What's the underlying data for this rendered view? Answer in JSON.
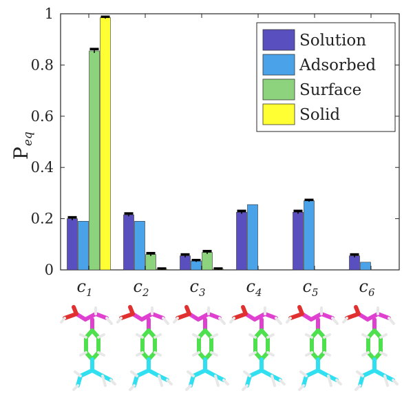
{
  "chart_data": {
    "type": "bar",
    "title": "",
    "xlabel": "",
    "ylabel": "P",
    "ylabel_subscript": "eq",
    "ylim": [
      0,
      1
    ],
    "yticks": [
      "0",
      "0.2",
      "0.4",
      "0.6",
      "0.8",
      "1"
    ],
    "yticks_values": [
      0,
      0.2,
      0.4,
      0.6,
      0.8,
      1
    ],
    "categories": [
      {
        "base": "c",
        "sub": "1"
      },
      {
        "base": "c",
        "sub": "2"
      },
      {
        "base": "c",
        "sub": "3"
      },
      {
        "base": "c",
        "sub": "4"
      },
      {
        "base": "c",
        "sub": "5"
      },
      {
        "base": "c",
        "sub": "6"
      }
    ],
    "legend_position": "top-right",
    "series": [
      {
        "name": "Solution",
        "color": "#5a4fbf",
        "values": [
          0.2,
          0.215,
          0.055,
          0.225,
          0.225,
          0.055
        ],
        "errors": [
          0.006,
          0.006,
          0.006,
          0.006,
          0.006,
          0.006
        ],
        "error_bars": [
          true,
          true,
          true,
          true,
          true,
          true
        ]
      },
      {
        "name": "Adsorbed",
        "color": "#4aa3e8",
        "values": [
          0.19,
          0.19,
          0.035,
          0.255,
          0.27,
          0.03
        ],
        "errors": [
          0.004,
          0.004,
          0.004,
          0.004,
          0.004,
          0.004
        ],
        "error_bars": [
          false,
          false,
          true,
          false,
          true,
          false
        ]
      },
      {
        "name": "Surface",
        "color": "#8dd27c",
        "values": [
          0.855,
          0.06,
          0.068,
          0.0,
          0.0,
          0.0
        ],
        "errors": [
          0.008,
          0.006,
          0.006,
          0.0,
          0.0,
          0.0
        ],
        "error_bars": [
          true,
          true,
          true,
          false,
          false,
          false
        ]
      },
      {
        "name": "Solid",
        "color": "#ffff33",
        "values": [
          0.985,
          0.003,
          0.003,
          0.0,
          0.0,
          0.0
        ],
        "errors": [
          0.004,
          0.003,
          0.003,
          0.0,
          0.0,
          0.0
        ],
        "error_bars": [
          true,
          true,
          true,
          false,
          false,
          false
        ]
      }
    ],
    "grid": false
  },
  "colors": {
    "molecule_carbon_top": "#e040d0",
    "molecule_ring": "#4ee04e",
    "molecule_tail": "#30e0f0",
    "molecule_oxygen": "#e03030",
    "molecule_hydrogen": "#e8e8e8"
  },
  "images": [
    "molecule-structure-c1",
    "molecule-structure-c2",
    "molecule-structure-c3",
    "molecule-structure-c4",
    "molecule-structure-c5",
    "molecule-structure-c6"
  ]
}
